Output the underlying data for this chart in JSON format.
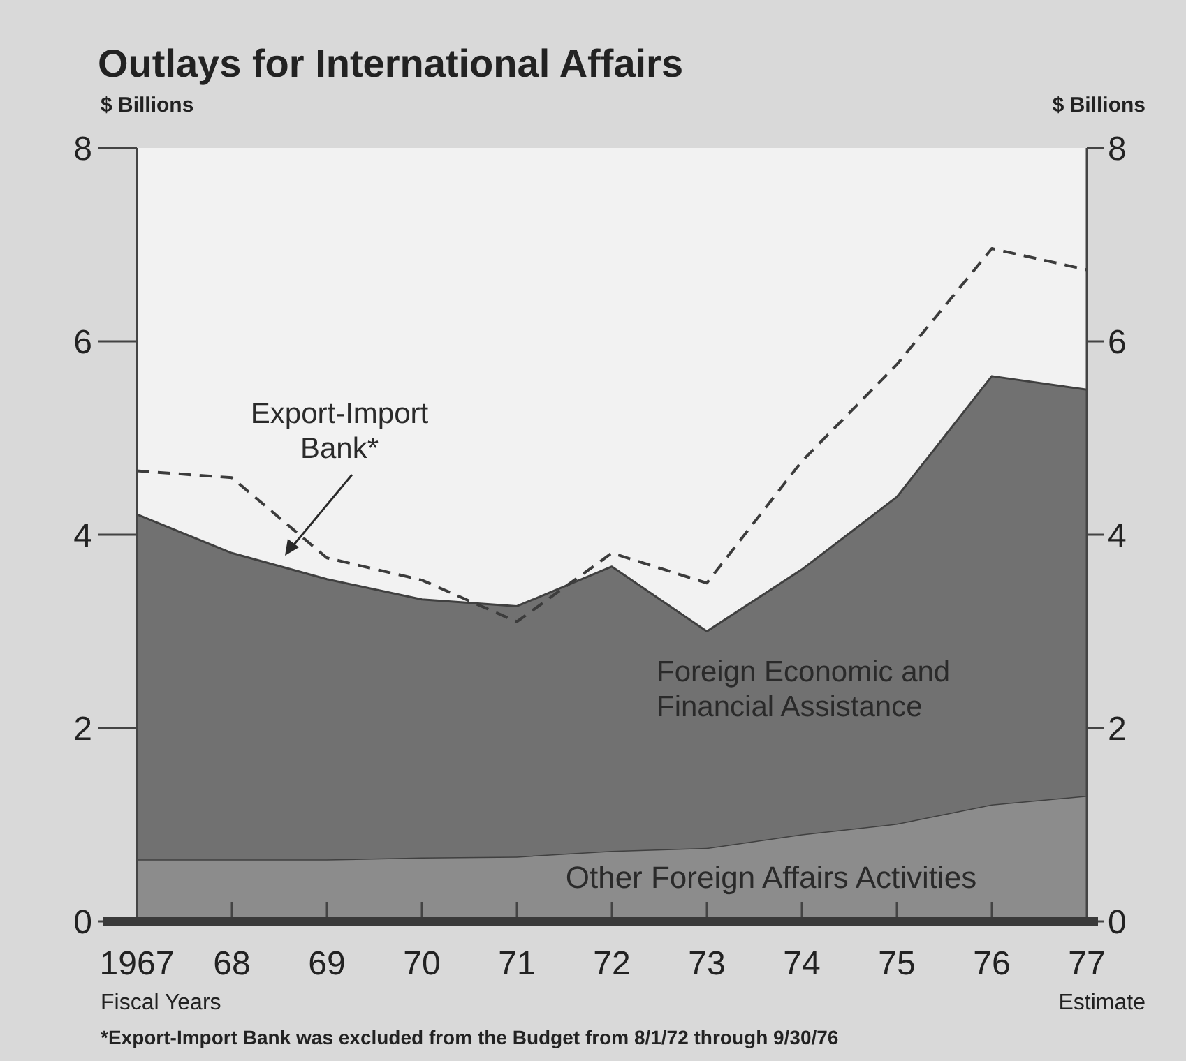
{
  "chart_data": {
    "type": "area",
    "title": "Outlays for International Affairs",
    "ylabel": "$ Billions",
    "y2label": "$ Billions",
    "xlabel": "Fiscal Years",
    "annotations": [
      "Estimate",
      "*Export-Import Bank was excluded from the Budget from 8/1/72 through 9/30/76"
    ],
    "categories": [
      "1967",
      "68",
      "69",
      "70",
      "71",
      "72",
      "73",
      "74",
      "75",
      "76",
      "77"
    ],
    "stacked": true,
    "ylim": [
      0,
      8
    ],
    "yticks": [
      0,
      2,
      4,
      6,
      8
    ],
    "y2lim": [
      0,
      8
    ],
    "y2ticks": [
      0,
      2,
      4,
      6,
      8
    ],
    "grid": false,
    "series": [
      {
        "name": "Other Foreign Affairs Activities",
        "color": "#8c8c8c",
        "values": [
          0.64,
          0.64,
          0.64,
          0.66,
          0.67,
          0.73,
          0.76,
          0.9,
          1.01,
          1.21,
          1.3
        ]
      },
      {
        "name": "Foreign Economic and Financial Assistance",
        "color": "#717171",
        "values": [
          3.57,
          3.17,
          2.9,
          2.67,
          2.59,
          2.94,
          2.24,
          2.74,
          3.38,
          4.43,
          4.2
        ]
      },
      {
        "name": "Export-Import Bank*",
        "type": "line",
        "line_style": "dashed",
        "color": "#3c3c3c",
        "values": [
          4.66,
          4.59,
          3.76,
          3.53,
          3.1,
          3.81,
          3.5,
          4.76,
          5.76,
          6.96,
          6.74
        ]
      }
    ]
  }
}
